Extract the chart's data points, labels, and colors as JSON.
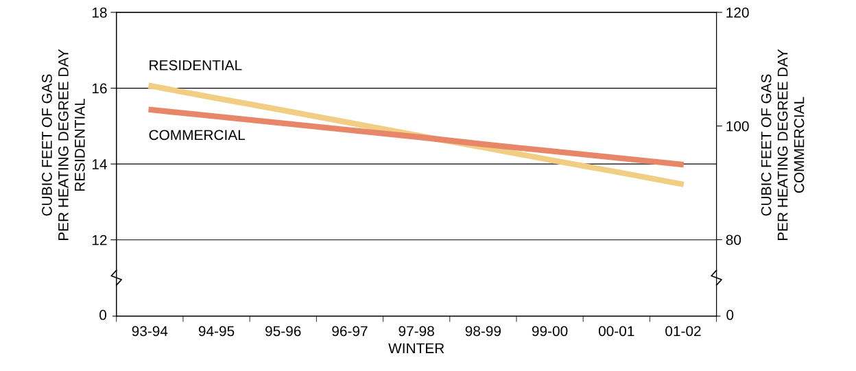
{
  "chart_data": [
    {
      "type": "line",
      "ylabel": "CUBIC FEET OF GAS\nPER HEATING DEGREE DAY\nRESIDENTIAL",
      "y2label": "CUBIC FEET OF GAS\nPER HEATING DEGREE DAY\nCOMMERCIAL",
      "series": [
        {
          "name": "RESIDENTIAL",
          "color": "#f2ce85",
          "values": [
            16.07,
            15.74,
            15.42,
            15.09,
            14.76,
            14.44,
            14.11,
            13.79,
            13.46
          ]
        },
        {
          "name": "COMMERCIAL",
          "color": "#e8866a",
          "axis": "y2",
          "values": [
            102.9,
            101.7,
            100.5,
            99.3,
            98.1,
            96.8,
            95.6,
            94.4,
            93.2
          ]
        }
      ],
      "ylim": [
        11,
        18
      ],
      "yticks": [
        12,
        14,
        16,
        18
      ],
      "y2lim": [
        73.3,
        120
      ],
      "y2ticks": [
        80,
        100,
        120
      ],
      "grid": "y",
      "tick_labels": "y",
      "marker": "none",
      "line_style": "solid"
    },
    {
      "type": "other",
      "xlabel": "WINTER",
      "categories": [
        "93-94",
        "94-95",
        "95-96",
        "96-97",
        "97-98",
        "98-99",
        "99-00",
        "00-01",
        "01-02"
      ],
      "annotations": [
        "0",
        "0"
      ]
    }
  ]
}
